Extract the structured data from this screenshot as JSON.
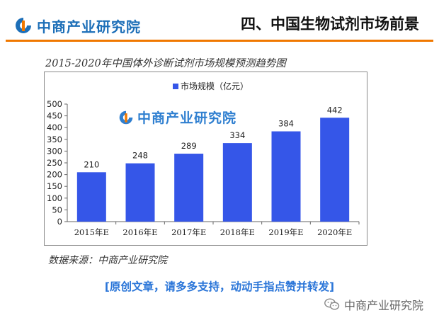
{
  "header": {
    "brand": "中商产业研究院",
    "section_title": "四、中国生物试剂市场前景"
  },
  "chart_title": "2015-2020年中国体外诊断试剂市场规模预测趋势图",
  "colors": {
    "bar": "#3556e8",
    "accent_rule": "#f07800",
    "brand_blue": "#1d6fb8",
    "cta": "#2a75d8"
  },
  "icons": [
    "brand-logo-icon",
    "wechat-icon"
  ],
  "chart_data": {
    "type": "bar",
    "categories": [
      "2015年E",
      "2016年E",
      "2017年E",
      "2018年E",
      "2019年E",
      "2020年E"
    ],
    "series": [
      {
        "name": "市场规模（亿元）",
        "values": [
          210,
          248,
          289,
          334,
          384,
          442
        ]
      }
    ],
    "ylim": [
      0,
      500
    ],
    "yticks": [
      0,
      50,
      100,
      150,
      200,
      250,
      300,
      350,
      400,
      450,
      500
    ],
    "grid": false,
    "legend": "top-center",
    "data_labels": true
  },
  "watermark": "中商产业研究院",
  "source": "数据来源：中商产业研究院",
  "cta": "[原创文章，请多多支持，动动手指点赞并转发]",
  "footer_account": "中商产业研究院"
}
